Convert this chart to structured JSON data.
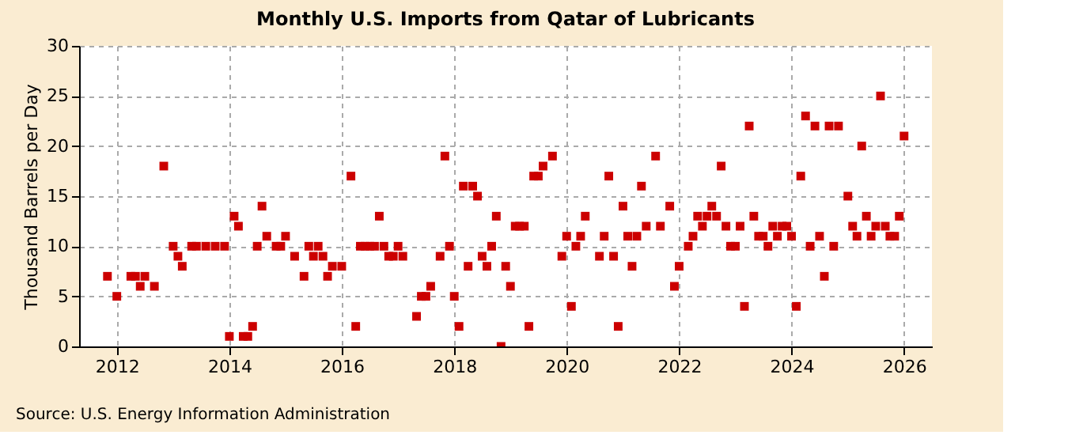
{
  "chart_data": {
    "type": "scatter",
    "title": "Monthly U.S. Imports from Qatar of Lubricants",
    "ylabel": "Thousand Barrels per Day",
    "annotations": [
      "Source: U.S. Energy Information Administration"
    ],
    "x": [
      "2011-11",
      "2012-01",
      "2012-04",
      "2012-05",
      "2012-06",
      "2012-07",
      "2012-09",
      "2012-11",
      "2013-01",
      "2013-02",
      "2013-03",
      "2013-05",
      "2013-06",
      "2013-08",
      "2013-10",
      "2013-12",
      "2014-01",
      "2014-02",
      "2014-03",
      "2014-04",
      "2014-05",
      "2014-06",
      "2014-07",
      "2014-08",
      "2014-09",
      "2014-11",
      "2014-12",
      "2015-01",
      "2015-03",
      "2015-05",
      "2015-06",
      "2015-07",
      "2015-08",
      "2015-09",
      "2015-10",
      "2015-11",
      "2016-01",
      "2016-03",
      "2016-04",
      "2016-05",
      "2016-06",
      "2016-07",
      "2016-08",
      "2016-09",
      "2016-10",
      "2016-11",
      "2016-12",
      "2017-01",
      "2017-02",
      "2017-05",
      "2017-06",
      "2017-07",
      "2017-08",
      "2017-10",
      "2017-11",
      "2017-12",
      "2018-01",
      "2018-02",
      "2018-03",
      "2018-04",
      "2018-05",
      "2018-06",
      "2018-07",
      "2018-08",
      "2018-09",
      "2018-10",
      "2018-11",
      "2018-12",
      "2019-01",
      "2019-02",
      "2019-03",
      "2019-04",
      "2019-05",
      "2019-06",
      "2019-07",
      "2019-08",
      "2019-10",
      "2019-12",
      "2020-01",
      "2020-02",
      "2020-03",
      "2020-04",
      "2020-05",
      "2020-08",
      "2020-09",
      "2020-10",
      "2020-11",
      "2020-12",
      "2021-01",
      "2021-02",
      "2021-03",
      "2021-04",
      "2021-05",
      "2021-06",
      "2021-08",
      "2021-09",
      "2021-11",
      "2021-12",
      "2022-01",
      "2022-03",
      "2022-04",
      "2022-05",
      "2022-06",
      "2022-07",
      "2022-08",
      "2022-09",
      "2022-10",
      "2022-11",
      "2022-12",
      "2023-01",
      "2023-02",
      "2023-03",
      "2023-04",
      "2023-05",
      "2023-06",
      "2023-07",
      "2023-08",
      "2023-09",
      "2023-10",
      "2023-11",
      "2023-12",
      "2024-01",
      "2024-02",
      "2024-03",
      "2024-04",
      "2024-05",
      "2024-06",
      "2024-07",
      "2024-08",
      "2024-09",
      "2024-10",
      "2024-11",
      "2025-01",
      "2025-02",
      "2025-03",
      "2025-04",
      "2025-05",
      "2025-06",
      "2025-07",
      "2025-08",
      "2025-09",
      "2025-10",
      "2025-11",
      "2025-12",
      "2026-01"
    ],
    "series": [
      {
        "color": "#cc0000",
        "values": [
          7,
          5,
          7,
          7,
          6,
          7,
          6,
          18,
          10,
          9,
          8,
          10,
          10,
          10,
          10,
          10,
          1,
          13,
          12,
          1,
          1,
          2,
          10,
          14,
          11,
          10,
          10,
          11,
          9,
          7,
          10,
          9,
          10,
          9,
          7,
          8,
          8,
          17,
          2,
          10,
          10,
          10,
          10,
          13,
          10,
          9,
          9,
          10,
          9,
          3,
          5,
          5,
          6,
          9,
          19,
          10,
          5,
          2,
          16,
          8,
          16,
          15,
          9,
          8,
          10,
          13,
          0,
          8,
          6,
          12,
          12,
          12,
          2,
          17,
          17,
          18,
          19,
          9,
          11,
          4,
          10,
          11,
          13,
          9,
          11,
          17,
          9,
          2,
          14,
          11,
          8,
          11,
          16,
          12,
          19,
          12,
          14,
          6,
          8,
          10,
          11,
          13,
          12,
          13,
          14,
          13,
          18,
          12,
          10,
          10,
          12,
          4,
          22,
          13,
          11,
          11,
          10,
          12,
          11,
          12,
          12,
          11,
          4,
          17,
          23,
          10,
          22,
          11,
          7,
          22,
          10,
          22,
          15,
          12,
          11,
          20,
          13,
          11,
          12,
          25,
          12,
          11,
          11,
          13,
          21
        ]
      }
    ],
    "xlim": [
      "2011-05",
      "2026-07"
    ],
    "xticks": [
      "2012",
      "2014",
      "2016",
      "2018",
      "2020",
      "2022",
      "2024",
      "2026"
    ],
    "ylim": [
      0,
      30
    ],
    "yticks": [
      0,
      5,
      10,
      15,
      20,
      25,
      30
    ],
    "grid": true,
    "marker": "square",
    "legend": false
  }
}
